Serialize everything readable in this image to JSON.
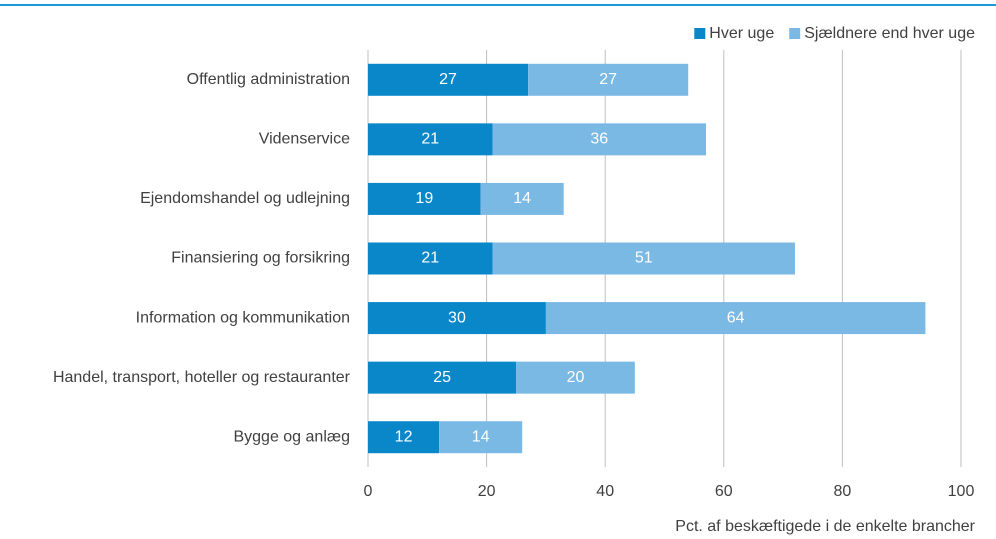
{
  "chart_data": {
    "type": "bar",
    "orientation": "horizontal",
    "stacked": true,
    "categories": [
      "Offentlig administration",
      "Videnservice",
      "Ejendomshandel og udlejning",
      "Finansiering og forsikring",
      "Information og kommunikation",
      "Handel, transport, hoteller og restauranter",
      "Bygge og anlæg"
    ],
    "series": [
      {
        "name": "Hver uge",
        "color": "#0a87c9",
        "values": [
          27,
          21,
          19,
          21,
          30,
          25,
          12
        ]
      },
      {
        "name": "Sjældnere end hver uge",
        "color": "#7bb9e5",
        "values": [
          27,
          36,
          14,
          51,
          64,
          20,
          14
        ]
      }
    ],
    "xlim": [
      0,
      100
    ],
    "xticks": [
      0,
      20,
      40,
      60,
      80,
      100
    ],
    "grid": true,
    "x_label": "Pct. af beskæftigede i de enkelte brancher",
    "legend": "top-right"
  }
}
